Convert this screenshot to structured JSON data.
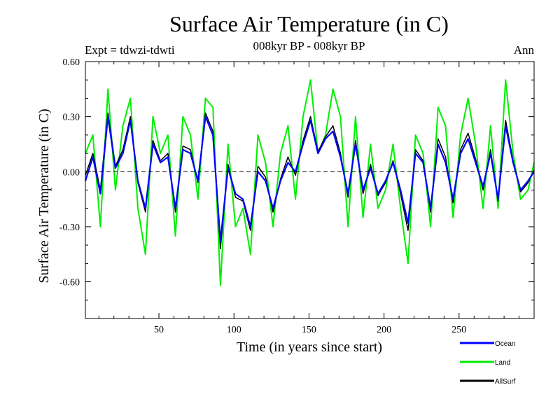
{
  "chart_data": {
    "type": "line",
    "title": "Surface Air Temperature (in C)",
    "subtitle": "008kyr BP - 008kyr BP",
    "experiment": "Expt = tdwzi-tdwti",
    "season": "Ann",
    "xlabel": "Time (in years since start)",
    "ylabel": "Surface Air Temperature (in C)",
    "xlim": [
      1,
      300
    ],
    "ylim": [
      -0.8,
      0.6
    ],
    "x_ticks": [
      50,
      100,
      150,
      200,
      250
    ],
    "x_tick_labels": [
      "50",
      "100",
      "150",
      "200",
      "250"
    ],
    "y_ticks": [
      0.6,
      0.3,
      0.0,
      -0.3,
      -0.6
    ],
    "y_tick_labels": [
      "0.60",
      "0.30",
      "0.00",
      "-0.30",
      "-0.60"
    ],
    "zero_line": "dashed",
    "grid": false,
    "legend_position": "bottom-right",
    "colors": {
      "ocean": "#0000ff",
      "land": "#00ee00",
      "allsurf": "#000000"
    },
    "series": [
      {
        "name": "Ocean",
        "color": "#0000ff",
        "x": [
          1,
          6,
          11,
          16,
          21,
          26,
          31,
          36,
          41,
          46,
          51,
          56,
          61,
          66,
          71,
          76,
          81,
          86,
          91,
          96,
          101,
          106,
          111,
          116,
          121,
          126,
          131,
          136,
          141,
          146,
          151,
          156,
          161,
          166,
          171,
          176,
          181,
          186,
          191,
          196,
          201,
          206,
          211,
          216,
          221,
          226,
          231,
          236,
          241,
          246,
          251,
          256,
          261,
          266,
          271,
          276,
          281,
          286,
          291,
          296,
          300
        ],
        "values": [
          -0.05,
          0.08,
          -0.12,
          0.3,
          0.02,
          0.1,
          0.28,
          -0.05,
          -0.2,
          0.15,
          0.05,
          0.08,
          -0.2,
          0.12,
          0.1,
          -0.05,
          0.3,
          0.2,
          -0.38,
          0.02,
          -0.12,
          -0.15,
          -0.3,
          0.0,
          -0.05,
          -0.2,
          -0.05,
          0.05,
          0.0,
          0.15,
          0.28,
          0.1,
          0.18,
          0.22,
          0.08,
          -0.12,
          0.15,
          -0.1,
          0.02,
          -0.12,
          -0.05,
          0.05,
          -0.1,
          -0.28,
          0.1,
          0.05,
          -0.2,
          0.15,
          0.05,
          -0.15,
          0.1,
          0.18,
          0.05,
          -0.08,
          0.1,
          -0.15,
          0.25,
          0.05,
          -0.1,
          -0.05,
          0.0
        ]
      },
      {
        "name": "Land",
        "color": "#00ee00",
        "x": [
          1,
          6,
          11,
          16,
          21,
          26,
          31,
          36,
          41,
          46,
          51,
          56,
          61,
          66,
          71,
          76,
          81,
          86,
          91,
          96,
          101,
          106,
          111,
          116,
          121,
          126,
          131,
          136,
          141,
          146,
          151,
          156,
          161,
          166,
          171,
          176,
          181,
          186,
          191,
          196,
          201,
          206,
          211,
          216,
          221,
          226,
          231,
          236,
          241,
          246,
          251,
          256,
          261,
          266,
          271,
          276,
          281,
          286,
          291,
          296,
          300
        ],
        "values": [
          0.1,
          0.2,
          -0.3,
          0.45,
          -0.1,
          0.25,
          0.4,
          -0.2,
          -0.45,
          0.3,
          0.1,
          0.2,
          -0.35,
          0.3,
          0.2,
          -0.15,
          0.4,
          0.35,
          -0.62,
          0.15,
          -0.3,
          -0.2,
          -0.45,
          0.2,
          0.05,
          -0.3,
          0.1,
          0.25,
          -0.15,
          0.3,
          0.5,
          0.1,
          0.2,
          0.45,
          0.3,
          -0.3,
          0.3,
          -0.25,
          0.15,
          -0.2,
          -0.1,
          0.15,
          -0.2,
          -0.5,
          0.2,
          0.1,
          -0.3,
          0.35,
          0.25,
          -0.25,
          0.2,
          0.4,
          0.15,
          -0.2,
          0.25,
          -0.2,
          0.5,
          0.1,
          -0.15,
          -0.1,
          0.05
        ]
      },
      {
        "name": "AllSurf",
        "color": "#000000",
        "x": [
          1,
          6,
          11,
          16,
          21,
          26,
          31,
          36,
          41,
          46,
          51,
          56,
          61,
          66,
          71,
          76,
          81,
          86,
          91,
          96,
          101,
          106,
          111,
          116,
          121,
          126,
          131,
          136,
          141,
          146,
          151,
          156,
          161,
          166,
          171,
          176,
          181,
          186,
          191,
          196,
          201,
          206,
          211,
          216,
          221,
          226,
          231,
          236,
          241,
          246,
          251,
          256,
          261,
          266,
          271,
          276,
          281,
          286,
          291,
          296,
          300
        ],
        "values": [
          -0.02,
          0.1,
          -0.1,
          0.32,
          0.03,
          0.12,
          0.3,
          -0.06,
          -0.22,
          0.17,
          0.06,
          0.1,
          -0.22,
          0.14,
          0.12,
          -0.06,
          0.32,
          0.22,
          -0.42,
          0.04,
          -0.14,
          -0.16,
          -0.32,
          0.03,
          -0.03,
          -0.22,
          -0.04,
          0.08,
          -0.02,
          0.17,
          0.3,
          0.11,
          0.19,
          0.25,
          0.1,
          -0.14,
          0.17,
          -0.12,
          0.04,
          -0.13,
          -0.06,
          0.06,
          -0.12,
          -0.32,
          0.12,
          0.06,
          -0.22,
          0.18,
          0.08,
          -0.17,
          0.12,
          0.21,
          0.07,
          -0.1,
          0.12,
          -0.16,
          0.28,
          0.06,
          -0.11,
          -0.06,
          0.01
        ]
      }
    ]
  }
}
